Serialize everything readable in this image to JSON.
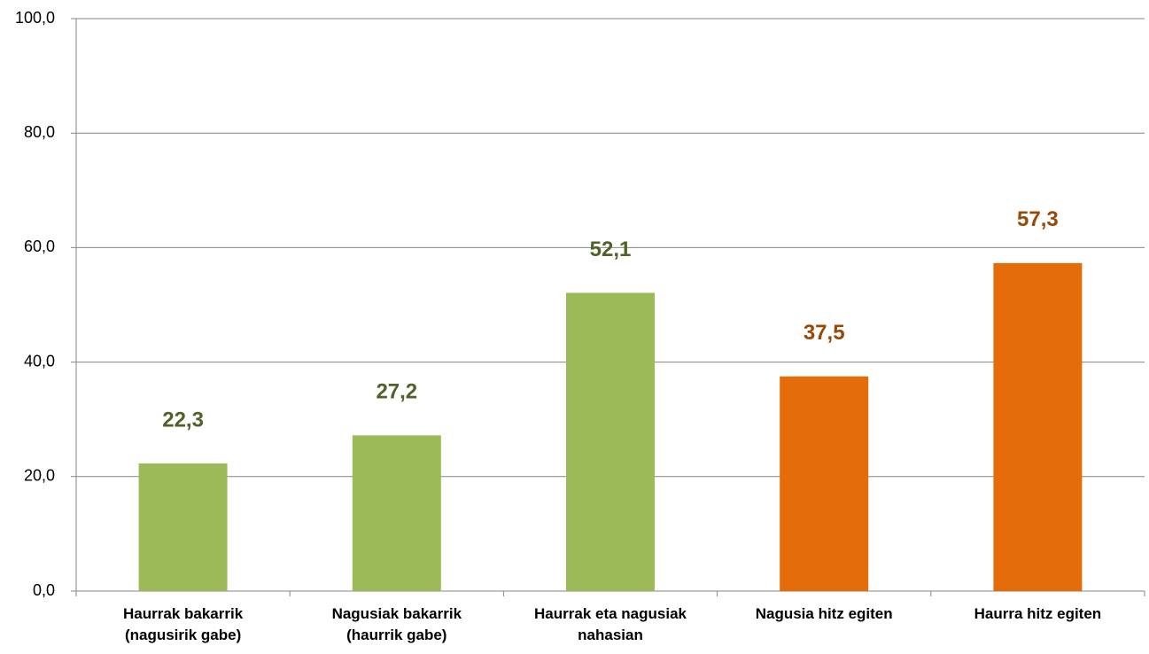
{
  "chart_data": {
    "type": "bar",
    "categories": [
      "Haurrak bakarrik\n(nagusirik gabe)",
      "Nagusiak bakarrik\n(haurrik gabe)",
      "Haurrak eta nagusiak\nnahasian",
      "Nagusia hitz egiten",
      "Haurra hitz egiten"
    ],
    "values": [
      22.3,
      27.2,
      52.1,
      37.5,
      57.3
    ],
    "value_labels": [
      "22,3",
      "27,2",
      "52,1",
      "37,5",
      "57,3"
    ],
    "colors": [
      "#9bbb59",
      "#9bbb59",
      "#9bbb59",
      "#e46c0a",
      "#e46c0a"
    ],
    "label_colors": [
      "#4f6228",
      "#4f6228",
      "#4f6228",
      "#984807",
      "#984807"
    ],
    "ylim": [
      0,
      100
    ],
    "yticks": [
      {
        "value": 0,
        "label": "0,0"
      },
      {
        "value": 20,
        "label": "20,0"
      },
      {
        "value": 40,
        "label": "40,0"
      },
      {
        "value": 60,
        "label": "60,0"
      },
      {
        "value": 80,
        "label": "80,0"
      },
      {
        "value": 100,
        "label": "100,0"
      }
    ],
    "grid": true
  }
}
